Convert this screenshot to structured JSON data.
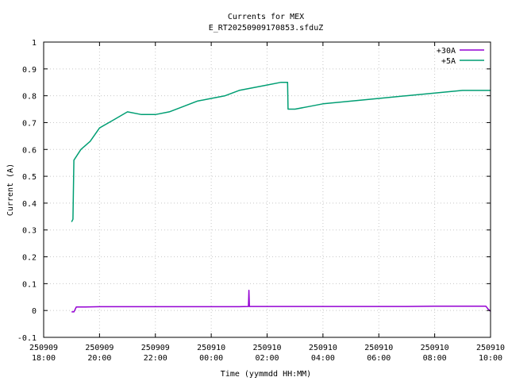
{
  "chart_data": {
    "type": "line",
    "title": "Currents for MEX",
    "subtitle": "E_RT20250909170853.sfduZ",
    "xlabel": "Time (yymmdd HH:MM)",
    "ylabel": "Current (A)",
    "xlim": [
      "250909 18:00",
      "250910 10:00"
    ],
    "ylim": [
      -0.1,
      1
    ],
    "grid": true,
    "legend_position": "top-right",
    "x_ticks": [
      {
        "date": "250909",
        "time": "18:00"
      },
      {
        "date": "250909",
        "time": "20:00"
      },
      {
        "date": "250909",
        "time": "22:00"
      },
      {
        "date": "250910",
        "time": "00:00"
      },
      {
        "date": "250910",
        "time": "02:00"
      },
      {
        "date": "250910",
        "time": "04:00"
      },
      {
        "date": "250910",
        "time": "06:00"
      },
      {
        "date": "250910",
        "time": "08:00"
      },
      {
        "date": "250910",
        "time": "10:00"
      }
    ],
    "y_ticks": [
      "-0.1",
      "0",
      "0.1",
      "0.2",
      "0.3",
      "0.4",
      "0.5",
      "0.6",
      "0.7",
      "0.8",
      "0.9",
      "1"
    ],
    "series": [
      {
        "name": "+30A",
        "color": "#9400d3",
        "x": [
          "250909 19:00",
          "250909 19:05",
          "250909 19:10",
          "250909 19:30",
          "250909 20:00",
          "250909 21:00",
          "250909 22:00",
          "250909 23:00",
          "250910 00:00",
          "250910 01:00",
          "250910 01:20",
          "250910 01:21",
          "250910 01:22",
          "250910 02:00",
          "250910 03:00",
          "250910 04:00",
          "250910 05:00",
          "250910 06:00",
          "250910 07:00",
          "250910 08:00",
          "250910 09:00",
          "250910 09:50",
          "250910 09:55",
          "250910 10:00"
        ],
        "y": [
          -0.005,
          -0.005,
          0.013,
          0.013,
          0.014,
          0.014,
          0.014,
          0.014,
          0.014,
          0.014,
          0.015,
          0.075,
          0.015,
          0.015,
          0.015,
          0.015,
          0.015,
          0.015,
          0.015,
          0.016,
          0.016,
          0.016,
          0.005,
          -0.003
        ]
      },
      {
        "name": "+5A",
        "color": "#009e73",
        "x": [
          "250909 19:00",
          "250909 19:03",
          "250909 19:05",
          "250909 19:20",
          "250909 19:40",
          "250909 20:00",
          "250909 20:30",
          "250909 21:00",
          "250909 21:30",
          "250909 22:00",
          "250909 22:30",
          "250909 23:00",
          "250909 23:30",
          "250910 00:00",
          "250910 00:30",
          "250910 01:00",
          "250910 01:30",
          "250910 02:00",
          "250910 02:30",
          "250910 02:44",
          "250910 02:45",
          "250910 03:00",
          "250910 03:30",
          "250910 04:00",
          "250910 05:00",
          "250910 06:00",
          "250910 07:00",
          "250910 08:00",
          "250910 09:00",
          "250910 10:00"
        ],
        "y": [
          0.33,
          0.34,
          0.56,
          0.6,
          0.63,
          0.68,
          0.71,
          0.74,
          0.73,
          0.73,
          0.74,
          0.76,
          0.78,
          0.79,
          0.8,
          0.82,
          0.83,
          0.84,
          0.85,
          0.85,
          0.75,
          0.75,
          0.76,
          0.77,
          0.78,
          0.79,
          0.8,
          0.81,
          0.82,
          0.82
        ]
      }
    ]
  }
}
